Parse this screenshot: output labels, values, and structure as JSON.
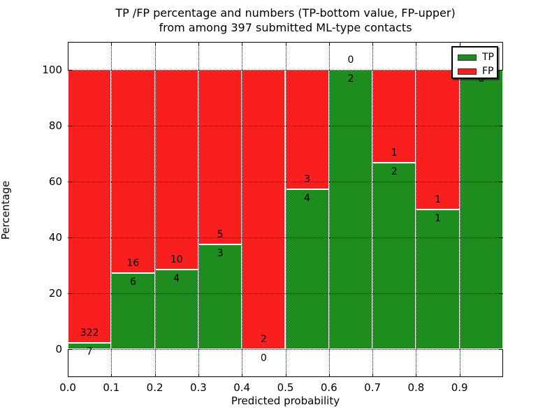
{
  "figure": {
    "title_line1": "TP /FP percentage and numbers (TP-bottom value, FP-upper)",
    "title_line2": "from among 397 submitted ML-type contacts"
  },
  "chart_data": {
    "type": "bar",
    "stacked": true,
    "normalized": "percent",
    "title": "TP /FP percentage and numbers (TP-bottom value, FP-upper)\nfrom among 397 submitted ML-type contacts",
    "xlabel": "Predicted probability",
    "ylabel": "Percentage",
    "total_submitted": 397,
    "bin_width": 0.1,
    "categories": [
      "0.0",
      "0.1",
      "0.2",
      "0.3",
      "0.4",
      "0.5",
      "0.6",
      "0.7",
      "0.8",
      "0.9"
    ],
    "series": [
      {
        "name": "TP",
        "color": "#1e8c1e",
        "values": [
          7,
          6,
          4,
          3,
          0,
          4,
          2,
          2,
          1,
          8
        ]
      },
      {
        "name": "FP",
        "color": "#fa1f1f",
        "values": [
          322,
          16,
          10,
          5,
          2,
          3,
          0,
          1,
          1,
          0
        ]
      }
    ],
    "tp_percent_per_bin": [
      2.1,
      27.3,
      28.6,
      37.5,
      0.0,
      57.1,
      100.0,
      66.7,
      50.0,
      100.0
    ],
    "ylim": [
      -10,
      110
    ],
    "yticks": [
      "0",
      "20",
      "40",
      "60",
      "80",
      "100"
    ],
    "ytick_values": [
      0,
      20,
      40,
      60,
      80,
      100
    ],
    "xticks": [
      "0.0",
      "0.1",
      "0.2",
      "0.3",
      "0.4",
      "0.5",
      "0.6",
      "0.7",
      "0.8",
      "0.9"
    ],
    "grid": "dotted, drawn above bars",
    "legend": {
      "position": "upper right",
      "entries": [
        {
          "label": "TP",
          "color": "#1e8c1e"
        },
        {
          "label": "FP",
          "color": "#fa1f1f"
        }
      ]
    }
  }
}
